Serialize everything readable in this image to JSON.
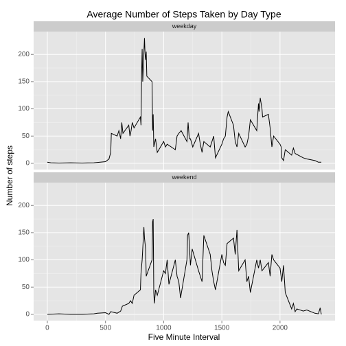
{
  "chart_data": {
    "type": "line",
    "title": "Average Number of Steps Taken by Day Type",
    "xlabel": "Five Minute Interval",
    "ylabel": "Number of steps",
    "xlim": [
      -117.75,
      2472.75
    ],
    "xticks": [
      0,
      500,
      1000,
      1500,
      2000
    ],
    "ylim": [
      -11.5,
      241.9
    ],
    "yticks": [
      0,
      50,
      100,
      150,
      200
    ],
    "grid": true,
    "series": [
      {
        "name": "weekday",
        "color": "#000000",
        "x": [
          0,
          30,
          100,
          200,
          300,
          400,
          500,
          530,
          545,
          550,
          600,
          615,
          630,
          640,
          650,
          700,
          710,
          720,
          730,
          745,
          800,
          805,
          810,
          815,
          820,
          830,
          835,
          840,
          845,
          850,
          855,
          900,
          905,
          910,
          915,
          930,
          945,
          1000,
          1015,
          1030,
          1100,
          1115,
          1130,
          1150,
          1200,
          1210,
          1220,
          1230,
          1250,
          1300,
          1315,
          1330,
          1345,
          1400,
          1430,
          1445,
          1500,
          1515,
          1530,
          1545,
          1555,
          1600,
          1615,
          1630,
          1645,
          1700,
          1715,
          1730,
          1745,
          1800,
          1815,
          1820,
          1830,
          1845,
          1850,
          1900,
          1915,
          1930,
          1945,
          2000,
          2010,
          2015,
          2030,
          2045,
          2100,
          2115,
          2130,
          2200,
          2230,
          2300,
          2330,
          2355
        ],
        "values": [
          2,
          1,
          0.5,
          1,
          0.5,
          1,
          3,
          8,
          20,
          55,
          50,
          60,
          45,
          75,
          55,
          70,
          50,
          60,
          75,
          65,
          85,
          70,
          160,
          210,
          150,
          205,
          230,
          200,
          190,
          205,
          160,
          150,
          60,
          90,
          30,
          45,
          20,
          40,
          30,
          35,
          25,
          50,
          55,
          60,
          40,
          75,
          45,
          45,
          30,
          55,
          35,
          20,
          40,
          30,
          50,
          10,
          35,
          45,
          50,
          85,
          95,
          70,
          40,
          30,
          55,
          30,
          35,
          50,
          80,
          60,
          110,
          95,
          120,
          100,
          85,
          90,
          65,
          30,
          50,
          35,
          30,
          10,
          5,
          25,
          15,
          28,
          18,
          10,
          8,
          5,
          2,
          2
        ]
      },
      {
        "name": "weekend",
        "color": "#000000",
        "x": [
          0,
          100,
          200,
          300,
          400,
          430,
          500,
          530,
          545,
          600,
          630,
          645,
          700,
          715,
          730,
          745,
          800,
          805,
          815,
          830,
          835,
          845,
          850,
          900,
          905,
          910,
          915,
          920,
          930,
          945,
          1000,
          1015,
          1030,
          1045,
          1100,
          1115,
          1130,
          1145,
          1200,
          1205,
          1215,
          1230,
          1245,
          1300,
          1315,
          1330,
          1345,
          1400,
          1415,
          1430,
          1445,
          1500,
          1515,
          1530,
          1545,
          1600,
          1615,
          1630,
          1645,
          1700,
          1715,
          1730,
          1745,
          1800,
          1815,
          1830,
          1845,
          1900,
          1915,
          1930,
          1945,
          2000,
          2015,
          2030,
          2045,
          2100,
          2115,
          2130,
          2145,
          2200,
          2230,
          2300,
          2330,
          2345,
          2355
        ],
        "values": [
          0,
          1,
          0,
          0,
          1,
          2,
          3,
          0,
          5,
          2,
          6,
          15,
          20,
          25,
          20,
          35,
          45,
          75,
          100,
          160,
          140,
          120,
          70,
          100,
          170,
          175,
          40,
          20,
          45,
          35,
          80,
          75,
          100,
          55,
          100,
          70,
          60,
          30,
          100,
          145,
          150,
          90,
          120,
          80,
          70,
          60,
          145,
          110,
          80,
          60,
          45,
          110,
          95,
          90,
          130,
          140,
          110,
          155,
          80,
          100,
          60,
          70,
          40,
          100,
          85,
          100,
          80,
          95,
          70,
          110,
          100,
          85,
          60,
          90,
          40,
          10,
          20,
          5,
          10,
          6,
          8,
          2,
          1,
          12,
          0
        ]
      }
    ]
  }
}
